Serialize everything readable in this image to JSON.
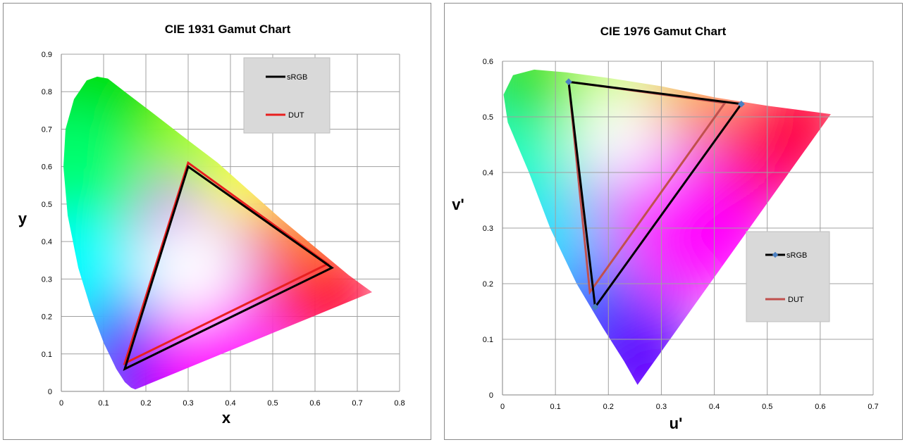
{
  "chart_data": [
    {
      "type": "scatter",
      "title": "CIE 1931 Gamut Chart",
      "xlabel": "x",
      "ylabel": "y",
      "xlim": [
        0,
        0.8
      ],
      "ylim": [
        0,
        0.9
      ],
      "x_ticks": [
        "0",
        "0.1",
        "0.2",
        "0.3",
        "0.4",
        "0.5",
        "0.6",
        "0.7",
        "0.8"
      ],
      "y_ticks": [
        "0",
        "0.1",
        "0.2",
        "0.3",
        "0.4",
        "0.5",
        "0.6",
        "0.7",
        "0.8",
        "0.9"
      ],
      "grid": "horizontal-and-vertical",
      "legend_position": "top-right",
      "locus": [
        [
          0.175,
          0.005
        ],
        [
          0.165,
          0.01
        ],
        [
          0.15,
          0.025
        ],
        [
          0.13,
          0.06
        ],
        [
          0.1,
          0.13
        ],
        [
          0.07,
          0.22
        ],
        [
          0.04,
          0.33
        ],
        [
          0.015,
          0.47
        ],
        [
          0.005,
          0.6
        ],
        [
          0.01,
          0.7
        ],
        [
          0.03,
          0.78
        ],
        [
          0.06,
          0.83
        ],
        [
          0.085,
          0.84
        ],
        [
          0.11,
          0.835
        ],
        [
          0.15,
          0.8
        ],
        [
          0.22,
          0.74
        ],
        [
          0.3,
          0.67
        ],
        [
          0.37,
          0.61
        ],
        [
          0.44,
          0.54
        ],
        [
          0.52,
          0.46
        ],
        [
          0.6,
          0.385
        ],
        [
          0.68,
          0.31
        ],
        [
          0.735,
          0.265
        ]
      ],
      "series": [
        {
          "name": "sRGB",
          "color": "#000000",
          "points": [
            [
              0.64,
              0.33
            ],
            [
              0.3,
              0.6
            ],
            [
              0.15,
              0.06
            ]
          ]
        },
        {
          "name": "DUT",
          "color": "#e8201f",
          "points": [
            [
              0.63,
              0.34
            ],
            [
              0.3,
              0.61
            ],
            [
              0.15,
              0.075
            ]
          ]
        }
      ]
    },
    {
      "type": "scatter",
      "title": "CIE 1976 Gamut Chart",
      "xlabel": "u'",
      "ylabel": "v'",
      "xlim": [
        0,
        0.7
      ],
      "ylim": [
        0,
        0.6
      ],
      "x_ticks": [
        "0",
        "0.1",
        "0.2",
        "0.3",
        "0.4",
        "0.5",
        "0.6",
        "0.7"
      ],
      "y_ticks": [
        "0",
        "0.1",
        "0.2",
        "0.3",
        "0.4",
        "0.5",
        "0.6"
      ],
      "grid": "horizontal-and-vertical",
      "legend_position": "right",
      "locus": [
        [
          0.255,
          0.018
        ],
        [
          0.23,
          0.06
        ],
        [
          0.19,
          0.12
        ],
        [
          0.14,
          0.2
        ],
        [
          0.09,
          0.3
        ],
        [
          0.05,
          0.4
        ],
        [
          0.01,
          0.49
        ],
        [
          0.002,
          0.54
        ],
        [
          0.02,
          0.575
        ],
        [
          0.06,
          0.585
        ],
        [
          0.12,
          0.58
        ],
        [
          0.2,
          0.57
        ],
        [
          0.3,
          0.555
        ],
        [
          0.4,
          0.535
        ],
        [
          0.5,
          0.52
        ],
        [
          0.62,
          0.505
        ]
      ],
      "series": [
        {
          "name": "sRGB",
          "color": "#000000",
          "marker_color": "#4a7fc1",
          "points": [
            [
              0.451,
              0.523
            ],
            [
              0.125,
              0.563
            ],
            [
              0.175,
              0.158
            ]
          ]
        },
        {
          "name": "DUT",
          "color": "#c0504d",
          "points": [
            [
              0.42,
              0.525
            ],
            [
              0.125,
              0.563
            ],
            [
              0.165,
              0.185
            ]
          ]
        }
      ]
    }
  ]
}
